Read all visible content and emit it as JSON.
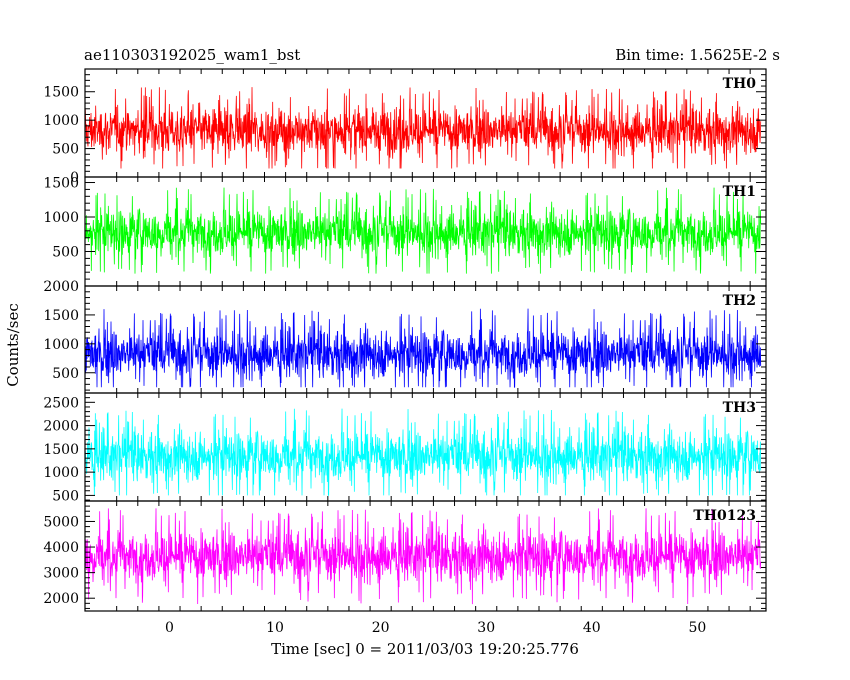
{
  "chart_data": {
    "type": "line",
    "title": "ae110303192025_wam1_bst",
    "subtitle": "Bin time: 1.5625E-2 s",
    "xlabel": "Time [sec] 0 = 2011/03/03 19:20:25.776",
    "ylabel": "Counts/sec",
    "xlim": [
      -8,
      56.5
    ],
    "x_ticks": [
      0,
      10,
      20,
      30,
      40,
      50
    ],
    "x_tick_labels": [
      "0",
      "10",
      "20",
      "30",
      "40",
      "50"
    ],
    "data_x_range": [
      -8,
      56
    ],
    "grid": false,
    "panels": [
      {
        "name": "TH0",
        "color": "#ff0000",
        "ylim": [
          0,
          1900
        ],
        "y_ticks": [
          0,
          500,
          1000,
          1500
        ],
        "y_tick_labels": [
          "0",
          "500",
          "1000",
          "1500"
        ],
        "mean": 820,
        "min": 150,
        "max": 1750
      },
      {
        "name": "TH1",
        "color": "#00ff00",
        "ylim": [
          0,
          1580
        ],
        "y_ticks": [
          500,
          1000,
          1500
        ],
        "y_tick_labels": [
          "500",
          "1000",
          "1500"
        ],
        "mean": 780,
        "min": 180,
        "max": 1550
      },
      {
        "name": "TH2",
        "color": "#0000ff",
        "ylim": [
          150,
          2000
        ],
        "y_ticks": [
          500,
          1000,
          1500,
          2000
        ],
        "y_tick_labels": [
          "500",
          "1000",
          "1500",
          "2000"
        ],
        "mean": 830,
        "min": 250,
        "max": 1900
      },
      {
        "name": "TH3",
        "color": "#00ffff",
        "ylim": [
          380,
          2700
        ],
        "y_ticks": [
          500,
          1000,
          1500,
          2000,
          2500
        ],
        "y_tick_labels": [
          "500",
          "1000",
          "1500",
          "2000",
          "2500"
        ],
        "mean": 1350,
        "min": 500,
        "max": 2650
      },
      {
        "name": "TH0123",
        "color": "#ff00ff",
        "ylim": [
          1500,
          5800
        ],
        "y_ticks": [
          2000,
          3000,
          4000,
          5000
        ],
        "y_tick_labels": [
          "2000",
          "3000",
          "4000",
          "5000"
        ],
        "mean": 3650,
        "min": 1700,
        "max": 5650
      }
    ]
  }
}
